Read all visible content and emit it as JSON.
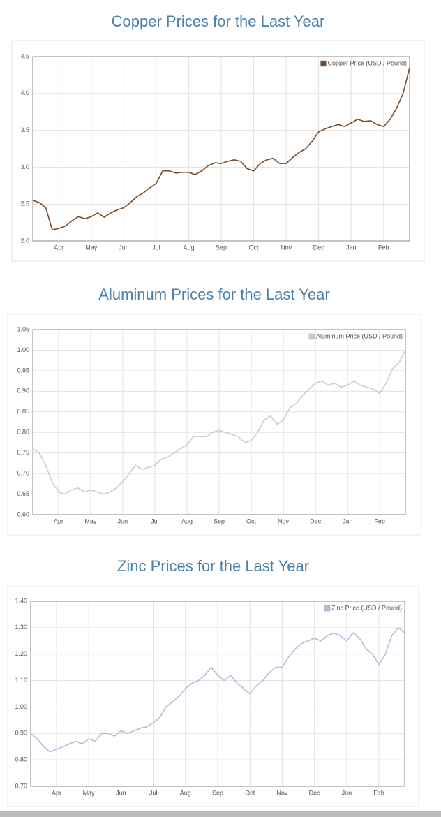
{
  "chart_data": [
    {
      "type": "line",
      "title": "Copper Prices for the Last Year",
      "categories": [
        null,
        null,
        null,
        null,
        "Apr",
        null,
        null,
        null,
        null,
        "May",
        null,
        null,
        null,
        null,
        "Jun",
        null,
        null,
        null,
        null,
        "Jul",
        null,
        null,
        null,
        null,
        "Aug",
        null,
        null,
        null,
        null,
        "Sep",
        null,
        null,
        null,
        null,
        "Oct",
        null,
        null,
        null,
        null,
        "Nov",
        null,
        null,
        null,
        null,
        "Dec",
        null,
        null,
        null,
        null,
        "Jan",
        null,
        null,
        null,
        null,
        "Feb",
        null,
        null,
        null,
        null
      ],
      "series": [
        {
          "name": "Copper Price (USD / Pound)",
          "color": "#7a4a22",
          "values": [
            2.55,
            2.52,
            2.45,
            2.15,
            2.17,
            2.2,
            2.27,
            2.33,
            2.3,
            2.33,
            2.38,
            2.32,
            2.38,
            2.42,
            2.45,
            2.52,
            2.6,
            2.65,
            2.72,
            2.78,
            2.95,
            2.95,
            2.92,
            2.93,
            2.93,
            2.9,
            2.95,
            3.02,
            3.06,
            3.05,
            3.08,
            3.1,
            3.08,
            2.98,
            2.95,
            3.05,
            3.1,
            3.12,
            3.05,
            3.05,
            3.13,
            3.2,
            3.25,
            3.35,
            3.48,
            3.52,
            3.55,
            3.58,
            3.55,
            3.6,
            3.65,
            3.62,
            3.63,
            3.58,
            3.55,
            3.65,
            3.8,
            4.0,
            4.35
          ]
        }
      ],
      "ylim": [
        2.0,
        4.5
      ],
      "yticks": [
        {
          "value": 2.0,
          "label": "2.0"
        },
        2.5,
        {
          "value": 3.0,
          "label": "3.0"
        },
        3.5,
        {
          "value": 4.0,
          "label": "4.0"
        },
        4.5
      ],
      "grid": true,
      "legend": "top-right"
    },
    {
      "type": "line",
      "title": "Aluminum Prices for the Last Year",
      "categories": [
        null,
        null,
        null,
        null,
        "Apr",
        null,
        null,
        null,
        null,
        "May",
        null,
        null,
        null,
        null,
        "Jun",
        null,
        null,
        null,
        null,
        "Jul",
        null,
        null,
        null,
        null,
        "Aug",
        null,
        null,
        null,
        null,
        "Sep",
        null,
        null,
        null,
        null,
        "Oct",
        null,
        null,
        null,
        null,
        "Nov",
        null,
        null,
        null,
        null,
        "Dec",
        null,
        null,
        null,
        null,
        "Jan",
        null,
        null,
        null,
        null,
        "Feb",
        null,
        null,
        null,
        null
      ],
      "series": [
        {
          "name": "Aluminum Price (USD / Pound)",
          "color": "#cccccc",
          "values": [
            0.76,
            0.75,
            0.72,
            0.68,
            0.655,
            0.65,
            0.66,
            0.665,
            0.655,
            0.66,
            0.655,
            0.65,
            0.655,
            0.665,
            0.68,
            0.7,
            0.72,
            0.71,
            0.715,
            0.72,
            0.735,
            0.74,
            0.75,
            0.76,
            0.77,
            0.79,
            0.79,
            0.79,
            0.8,
            0.805,
            0.8,
            0.795,
            0.79,
            0.775,
            0.78,
            0.8,
            0.83,
            0.84,
            0.82,
            0.83,
            0.86,
            0.87,
            0.89,
            0.905,
            0.92,
            0.925,
            0.915,
            0.92,
            0.91,
            0.915,
            0.925,
            0.915,
            0.91,
            0.905,
            0.895,
            0.92,
            0.955,
            0.97,
            1.0
          ]
        }
      ],
      "ylim": [
        0.6,
        1.05
      ],
      "yticks": [
        {
          "value": 0.6,
          "label": "0.60"
        },
        0.65,
        {
          "value": 0.7,
          "label": "0.70"
        },
        0.75,
        {
          "value": 0.8,
          "label": "0.80"
        },
        0.85,
        {
          "value": 0.9,
          "label": "0.90"
        },
        0.95,
        {
          "value": 1.0,
          "label": "1.00"
        },
        1.05
      ],
      "grid": true,
      "legend": "top-right"
    },
    {
      "type": "line",
      "title": "Zinc Prices for the Last Year",
      "categories": [
        null,
        null,
        null,
        null,
        "Apr",
        null,
        null,
        null,
        null,
        "May",
        null,
        null,
        null,
        null,
        "Jun",
        null,
        null,
        null,
        null,
        "Jul",
        null,
        null,
        null,
        null,
        "Aug",
        null,
        null,
        null,
        null,
        "Sep",
        null,
        null,
        null,
        null,
        "Oct",
        null,
        null,
        null,
        null,
        "Nov",
        null,
        null,
        null,
        null,
        "Dec",
        null,
        null,
        null,
        null,
        "Jan",
        null,
        null,
        null,
        null,
        "Feb",
        null,
        null,
        null,
        null
      ],
      "series": [
        {
          "name": "Zinc Price (USD / Pound)",
          "color": "#adbfdc",
          "values": [
            0.9,
            0.88,
            0.85,
            0.83,
            0.84,
            0.85,
            0.86,
            0.87,
            0.86,
            0.88,
            0.87,
            0.9,
            0.9,
            0.89,
            0.91,
            0.9,
            0.91,
            0.92,
            0.925,
            0.94,
            0.96,
            1.0,
            1.02,
            1.04,
            1.07,
            1.09,
            1.1,
            1.12,
            1.15,
            1.12,
            1.1,
            1.12,
            1.09,
            1.07,
            1.05,
            1.08,
            1.1,
            1.13,
            1.15,
            1.15,
            1.19,
            1.22,
            1.24,
            1.25,
            1.26,
            1.25,
            1.27,
            1.28,
            1.27,
            1.25,
            1.28,
            1.26,
            1.22,
            1.2,
            1.16,
            1.2,
            1.27,
            1.3,
            1.28
          ]
        }
      ],
      "ylim": [
        0.7,
        1.4
      ],
      "yticks": [
        {
          "value": 0.7,
          "label": "0.70"
        },
        {
          "value": 0.8,
          "label": "0.80"
        },
        {
          "value": 0.9,
          "label": "0.90"
        },
        {
          "value": 1.0,
          "label": "1.00"
        },
        {
          "value": 1.1,
          "label": "1.10"
        },
        {
          "value": 1.2,
          "label": "1.20"
        },
        {
          "value": 1.3,
          "label": "1.30"
        },
        {
          "value": 1.4,
          "label": "1.40"
        }
      ],
      "grid": true,
      "legend": "top-right"
    }
  ]
}
